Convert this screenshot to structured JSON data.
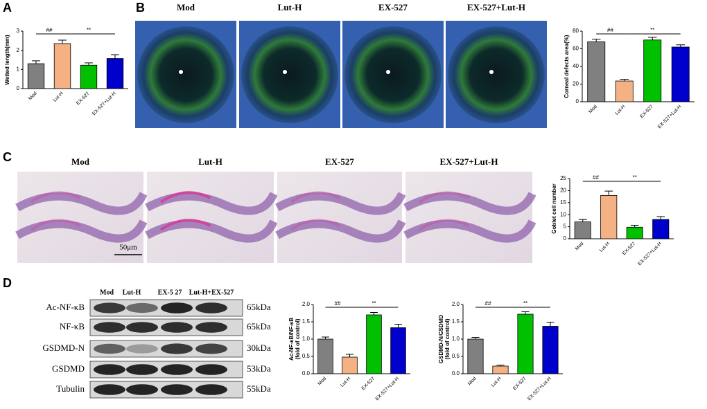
{
  "panel_labels": [
    "A",
    "B",
    "C",
    "D"
  ],
  "cornea_images": {
    "labels": [
      "Mod",
      "Lut-H",
      "EX-527",
      "EX-527+Lut-H"
    ]
  },
  "histology_images": {
    "labels": [
      "Mod",
      "Lut-H",
      "EX-527",
      "EX-527+Lut-H"
    ],
    "scale_bar": "50μm"
  },
  "western_blot": {
    "lanes": [
      "Mod",
      "Lut-H",
      "EX-5 27",
      "Lut-H+EX-527"
    ],
    "rows": [
      {
        "protein": "Ac-NF-κB",
        "size": "65kDa"
      },
      {
        "protein": "NF-κB",
        "size": "65kDa"
      },
      {
        "protein": "GSDMD-N",
        "size": "30kDa"
      },
      {
        "protein": "GSDMD",
        "size": "53kDa"
      },
      {
        "protein": "Tubulin",
        "size": "55kDa"
      }
    ]
  },
  "chart_data": [
    {
      "type": "bar",
      "ylabel": "Wetted length(mm)",
      "categories": [
        "Mod",
        "Lut-H",
        "EX-527",
        "EX-527+Lut-H"
      ],
      "values": [
        1.3,
        2.35,
        1.22,
        1.57
      ],
      "errors": [
        0.15,
        0.18,
        0.12,
        0.2
      ],
      "colors": [
        "#808080",
        "#f4b183",
        "#00c000",
        "#0000cc"
      ],
      "ylim": [
        0,
        3
      ],
      "yticks": [
        0,
        1,
        2,
        3
      ],
      "annotations": [
        "##",
        "**"
      ]
    },
    {
      "type": "bar",
      "ylabel": "Corneal defects area(%)",
      "categories": [
        "Mod",
        "Lut-H",
        "EX-527",
        "EX-527+Lut-H"
      ],
      "values": [
        68,
        23.5,
        70,
        62
      ],
      "errors": [
        3,
        2,
        3,
        2.5
      ],
      "colors": [
        "#808080",
        "#f4b183",
        "#00c000",
        "#0000cc"
      ],
      "ylim": [
        0,
        80
      ],
      "yticks": [
        0,
        20,
        40,
        60,
        80
      ],
      "annotations": [
        "##",
        "**"
      ]
    },
    {
      "type": "bar",
      "ylabel": "Goblet cell number",
      "categories": [
        "Mod",
        "Lut-H",
        "EX-527",
        "EX-527+Lut-H"
      ],
      "values": [
        7,
        18,
        4.8,
        8
      ],
      "errors": [
        1,
        1.8,
        0.8,
        1.2
      ],
      "colors": [
        "#808080",
        "#f4b183",
        "#00c000",
        "#0000cc"
      ],
      "ylim": [
        0,
        25
      ],
      "yticks": [
        0,
        5,
        10,
        15,
        20,
        25
      ],
      "annotations": [
        "##",
        "**"
      ]
    },
    {
      "type": "bar",
      "ylabel": [
        "Ac-NF-κB/NF-κB",
        "(fold of control)"
      ],
      "categories": [
        "Mod",
        "Lut-H",
        "EX-527",
        "EX-527+Lut-H"
      ],
      "values": [
        1.0,
        0.48,
        1.7,
        1.33
      ],
      "errors": [
        0.06,
        0.08,
        0.07,
        0.1
      ],
      "colors": [
        "#808080",
        "#f4b183",
        "#00c000",
        "#0000cc"
      ],
      "ylim": [
        0,
        2
      ],
      "yticks": [
        {
          "value": 0,
          "label": "0.0"
        },
        {
          "value": 0.5,
          "label": "0.5"
        },
        {
          "value": 1,
          "label": "1.0"
        },
        {
          "value": 1.5,
          "label": "1.5"
        },
        {
          "value": 2,
          "label": "2.0"
        }
      ],
      "annotations": [
        "##",
        "**"
      ]
    },
    {
      "type": "bar",
      "ylabel": [
        "GSDMD-N/GSDMD",
        "(fold of control)"
      ],
      "categories": [
        "Mod",
        "Lut-H",
        "EX-527",
        "EX-527+Lut-H"
      ],
      "values": [
        1.0,
        0.22,
        1.72,
        1.37
      ],
      "errors": [
        0.05,
        0.03,
        0.07,
        0.12
      ],
      "colors": [
        "#808080",
        "#f4b183",
        "#00c000",
        "#0000cc"
      ],
      "ylim": [
        0,
        2
      ],
      "yticks": [
        {
          "value": 0,
          "label": "0.0"
        },
        {
          "value": 0.5,
          "label": "0.5"
        },
        {
          "value": 1,
          "label": "1.0"
        },
        {
          "value": 1.5,
          "label": "1.5"
        },
        {
          "value": 2,
          "label": "2.0"
        }
      ],
      "annotations": [
        "##",
        "**"
      ]
    }
  ]
}
